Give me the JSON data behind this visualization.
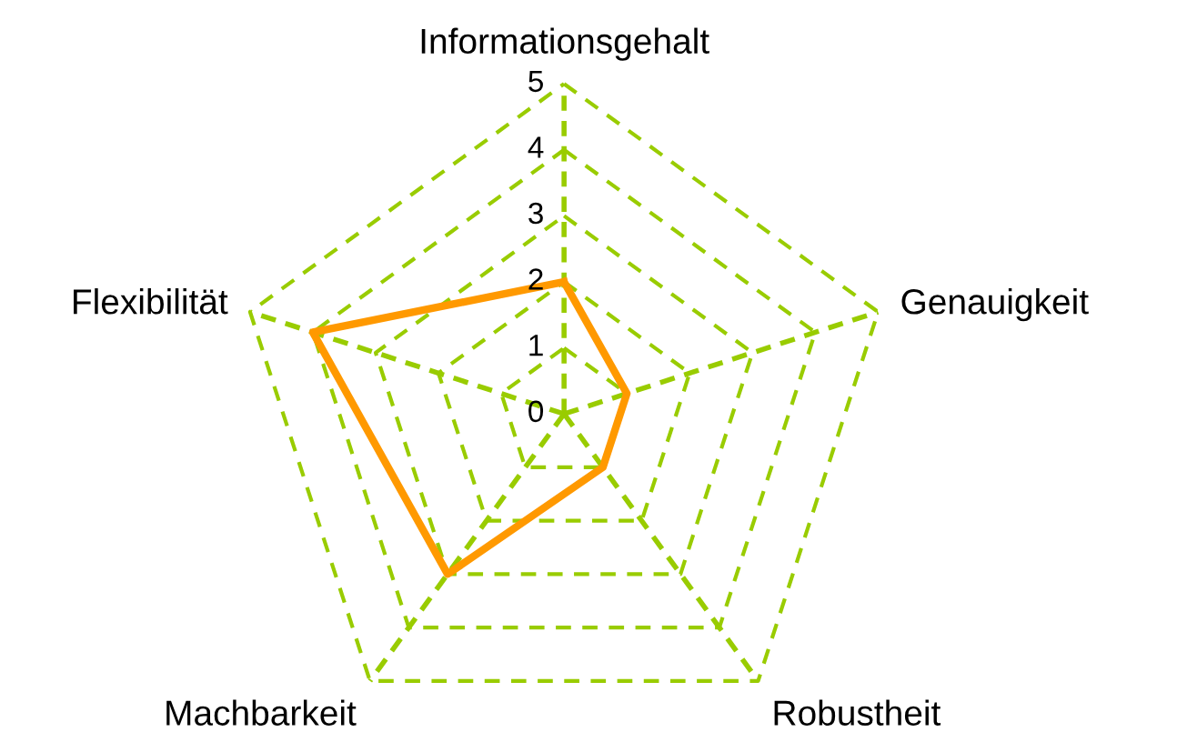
{
  "chart_data": {
    "type": "radar",
    "categories": [
      "Informationsgehalt",
      "Genauigkeit",
      "Robustheit",
      "Machbarkeit",
      "Flexibilität"
    ],
    "series": [
      {
        "color": "#ff9900",
        "values": [
          2,
          1,
          1,
          3,
          4
        ]
      }
    ],
    "ylim": [
      0,
      5
    ],
    "yticks": [
      0,
      1,
      2,
      3,
      4,
      5
    ],
    "grid": true,
    "marker": "none",
    "line_style": "solid"
  }
}
